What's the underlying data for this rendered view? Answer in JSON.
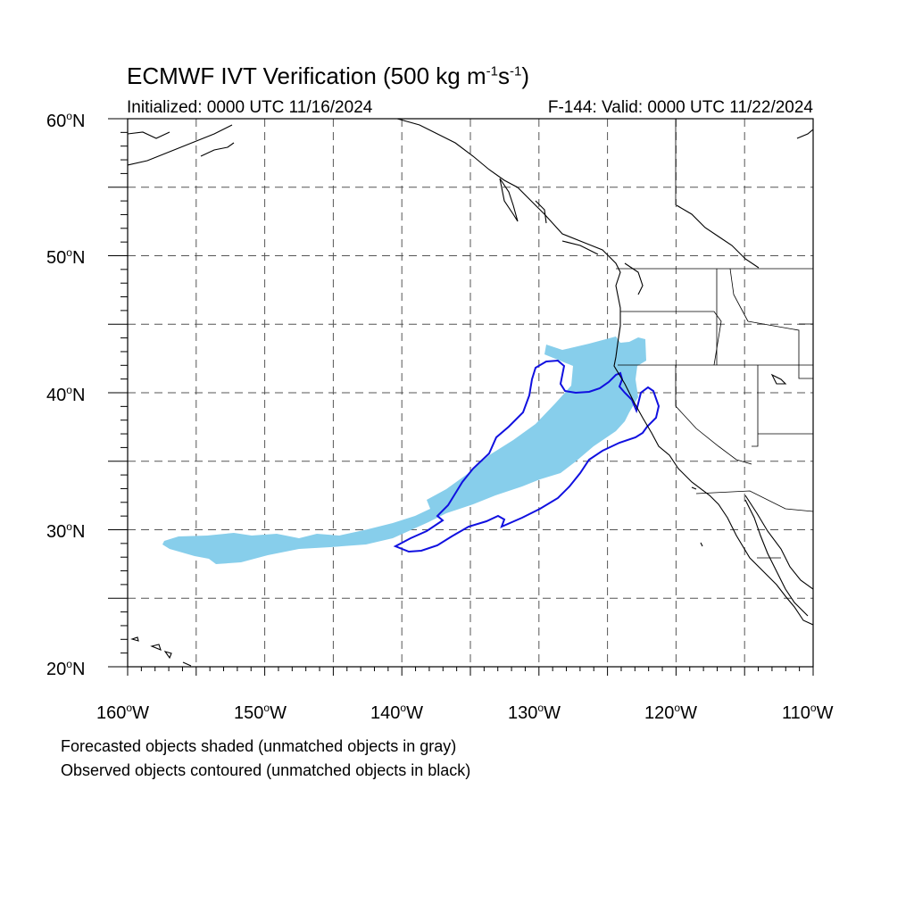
{
  "header": {
    "title_main": "ECMWF IVT Verification (500 kg m",
    "title_exp1": "-1",
    "title_mid": "s",
    "title_exp2": "-1",
    "title_end": ")",
    "initialized": "Initialized: 0000 UTC 11/16/2024",
    "valid": "F-144: Valid: 0000 UTC 11/22/2024"
  },
  "axes": {
    "lat_labels": [
      "60",
      "50",
      "40",
      "30",
      "20"
    ],
    "lat_suffix": "N",
    "lon_labels": [
      "160",
      "150",
      "140",
      "130",
      "120",
      "110"
    ],
    "lon_suffix": "W",
    "deg_symbol": "o",
    "lat_range": [
      20,
      60
    ],
    "lon_range": [
      -160,
      -110
    ],
    "grid": true
  },
  "legend": {
    "line1": "Forecasted objects shaded (unmatched objects in gray)",
    "line2": "Observed objects contoured (unmatched objects in black)"
  },
  "colors": {
    "forecast_fill": "#87ceeb",
    "observed_contour": "#0000ee",
    "coastline": "#000000",
    "grid": "#555555"
  }
}
